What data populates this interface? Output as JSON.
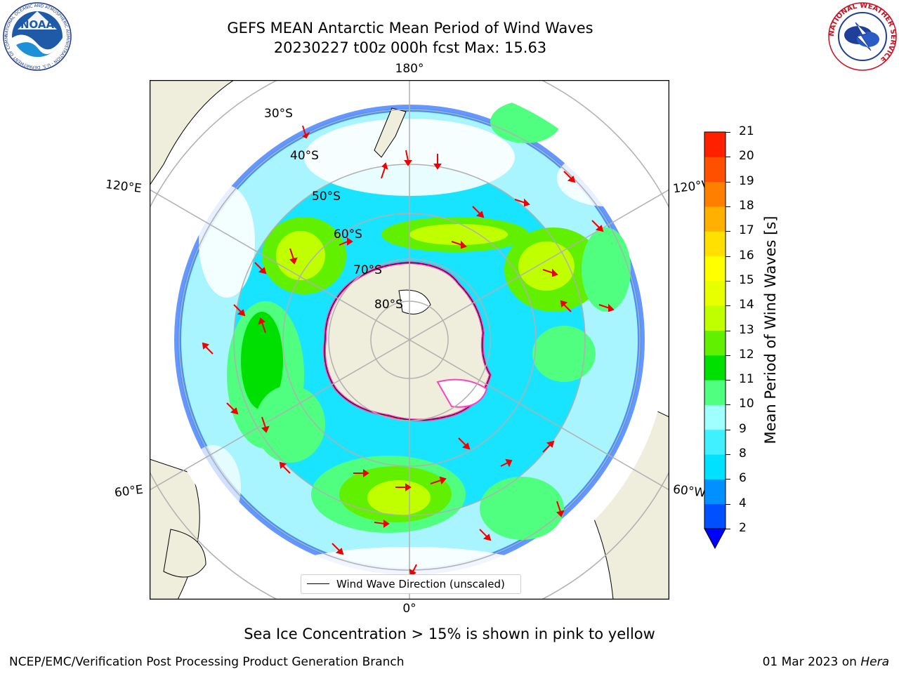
{
  "header": {
    "title_line1": "GEFS MEAN Antarctic Mean Period of Wind Waves",
    "title_line2": "20230227 t00z 000h fcst   Max: 15.63"
  },
  "logos": {
    "left": {
      "name": "NOAA",
      "text": "NOAA",
      "ring_text": "NATIONAL OCEANIC AND ATMOSPHERIC ADMINISTRATION · U.S. DEPARTMENT OF COMMERCE"
    },
    "right": {
      "name": "National Weather Service",
      "ring_text": "NATIONAL WEATHER SERVICE"
    }
  },
  "map": {
    "projection": "south-polar-stereographic",
    "lon_labels": {
      "top": "180°",
      "bottom": "0°",
      "upper_left": "120°E",
      "upper_right": "120°W",
      "lower_left": "60°E",
      "lower_right": "60°W"
    },
    "lat_labels": [
      "30°S",
      "40°S",
      "50°S",
      "60°S",
      "70°S",
      "80°S"
    ],
    "legend": {
      "label": "Wind Wave Direction (unscaled)"
    }
  },
  "colorbar": {
    "label": "Mean Period of Wind Waves [s]",
    "ticks": [
      "2",
      "4",
      "6",
      "8",
      "9",
      "10",
      "11",
      "12",
      "13",
      "14",
      "15",
      "16",
      "17",
      "18",
      "19",
      "20",
      "21"
    ],
    "colors": [
      "#0050ff",
      "#0090ff",
      "#00e0ff",
      "#40f0ff",
      "#a0ffff",
      "#50ff80",
      "#00e000",
      "#60f000",
      "#c0ff00",
      "#e8ff00",
      "#ffff00",
      "#ffe000",
      "#ffb000",
      "#ff8000",
      "#ff5000",
      "#ff2000",
      "#ff0000"
    ],
    "under_color": "#0000ff"
  },
  "annotations": {
    "sea_ice_note": "Sea Ice Concentration > 15% is shown in pink to yellow",
    "footer_left": "NCEP/EMC/Verification Post Processing Product Generation Branch",
    "footer_right_date": "01 Mar 2023 on ",
    "footer_right_host": "Hera"
  },
  "palette": {
    "land": "#efeedc",
    "sea_ice_pink": "#ff40c0",
    "arrow": "#ee0000",
    "grid": "#b0b0b0"
  }
}
